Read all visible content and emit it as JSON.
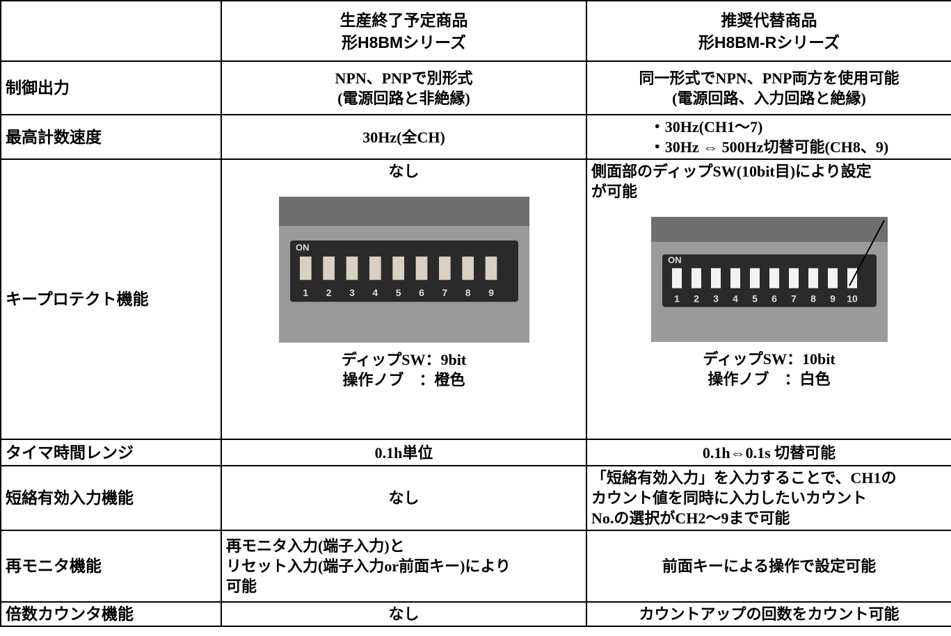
{
  "header": {
    "columns": [
      {
        "lines": [
          "生産終了予定商品",
          "形H8BMシリーズ"
        ]
      },
      {
        "lines": [
          "推奨代替商品",
          "形H8BM-Rシリーズ"
        ]
      }
    ]
  },
  "rows": [
    {
      "label": "制御出力",
      "cells": [
        {
          "lines": [
            "NPN、PNPで別形式",
            "(電源回路と非絶縁)"
          ]
        },
        {
          "lines": [
            "同一形式でNPN、PNP両方を使用可能",
            "(電源回路、入力回路と絶縁)"
          ]
        }
      ]
    },
    {
      "label": "最高計数速度",
      "cells": [
        {
          "lines": [
            "30Hz(全CH)"
          ]
        },
        {
          "lines": [
            "・30Hz(CH1〜7)",
            "・30Hz ⇔ 500Hz切替可能(CH8、9)"
          ]
        }
      ]
    },
    {
      "label": "キープロテクト機能",
      "cells": [
        {
          "lines": [
            "なし"
          ],
          "photo": {
            "on": "ON",
            "switches": [
              "1",
              "2",
              "3",
              "4",
              "5",
              "6",
              "7",
              "8",
              "9"
            ]
          },
          "caption": [
            "ディップSW：9bit",
            "操作ノブ　：橙色"
          ]
        },
        {
          "lines": [
            "側面部のディップSW(10bit目)により設定",
            "が可能"
          ],
          "photo": {
            "on": "ON",
            "switches": [
              "1",
              "2",
              "3",
              "4",
              "5",
              "6",
              "7",
              "8",
              "9",
              "10"
            ]
          },
          "caption": [
            "ディップSW：10bit",
            "操作ノブ　：白色"
          ]
        }
      ]
    },
    {
      "label": "タイマ時間レンジ",
      "cells": [
        {
          "lines": [
            "0.1h単位"
          ]
        },
        {
          "lines": [
            "0.1h⇔0.1s 切替可能"
          ]
        }
      ]
    },
    {
      "label": "短絡有効入力機能",
      "cells": [
        {
          "lines": [
            "なし"
          ]
        },
        {
          "lines": [
            "「短絡有効入力」を入力することで、CH1の",
            "カウント値を同時に入力したいカウント",
            "No.の選択がCH2〜9まで可能"
          ]
        }
      ]
    },
    {
      "label": "再モニタ機能",
      "cells": [
        {
          "lines": [
            "再モニタ入力(端子入力)と",
            "リセット入力(端子入力or前面キー)により",
            "可能"
          ]
        },
        {
          "lines": [
            "前面キーによる操作で設定可能"
          ]
        }
      ]
    },
    {
      "label": "倍数カウンタ機能",
      "cells": [
        {
          "lines": [
            "なし"
          ]
        },
        {
          "lines": [
            "カウントアップの回数をカウント可能"
          ]
        }
      ]
    }
  ]
}
